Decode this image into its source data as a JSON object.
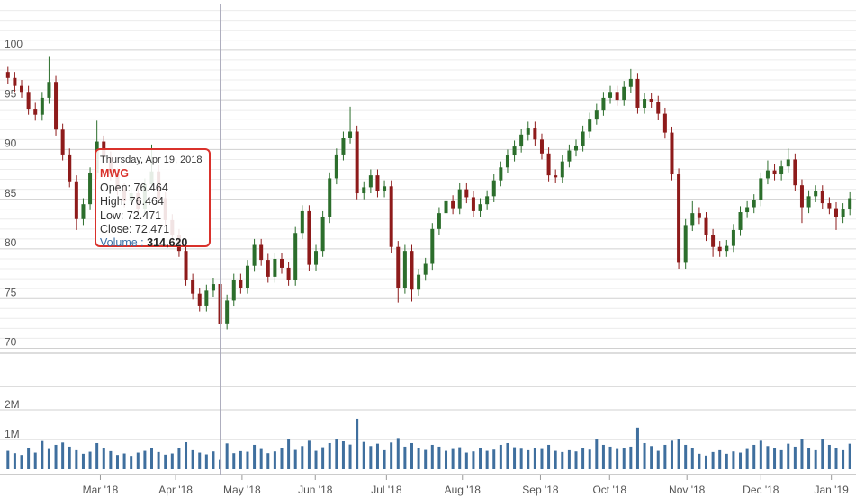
{
  "chart_data": {
    "type": "candlestick",
    "open": [
      97.8,
      97.2,
      96.4,
      95.8,
      94.1,
      93.5,
      95.2,
      96.8,
      92.0,
      89.5,
      86.8,
      83.0,
      84.5,
      87.6,
      90.8,
      89.2,
      87.5,
      86.0,
      84.8,
      85.6,
      84.0,
      86.5,
      87.8,
      85.1,
      82.9,
      81.4,
      79.8,
      76.9,
      75.5,
      74.3,
      75.8,
      76.464,
      72.5,
      74.8,
      76.9,
      76.1,
      78.3,
      80.4,
      78.9,
      77.2,
      79.0,
      78.1,
      76.9,
      81.6,
      83.8,
      78.4,
      79.8,
      83.2,
      87.1,
      89.5,
      91.2,
      91.8,
      85.6,
      86.2,
      87.4,
      85.8,
      86.3,
      80.2,
      76.1,
      79.8,
      75.9,
      77.4,
      78.5,
      82.0,
      83.6,
      84.8,
      84.1,
      86.0,
      85.2,
      83.8,
      84.5,
      85.3,
      86.9,
      88.2,
      89.4,
      90.3,
      91.5,
      92.2,
      91.0,
      89.6,
      87.4,
      87.2,
      88.8,
      89.9,
      90.4,
      91.8,
      93.1,
      94.0,
      95.2,
      95.8,
      95.0,
      96.3,
      97.1,
      94.2,
      95.1,
      94.8,
      93.6,
      91.7,
      87.5,
      78.6,
      82.4,
      83.6,
      83.1,
      81.4,
      80.2,
      79.8,
      80.3,
      81.9,
      83.7,
      84.2,
      84.9,
      87.1,
      87.9,
      87.5,
      88.3,
      89.0,
      86.4,
      84.2,
      85.3,
      85.8,
      84.6,
      84.1,
      83.2,
      84.0
    ],
    "high": [
      98.4,
      97.8,
      97.0,
      96.4,
      94.7,
      95.8,
      99.4,
      97.4,
      92.6,
      90.1,
      87.4,
      85.1,
      88.2,
      92.9,
      91.4,
      89.8,
      88.1,
      86.6,
      86.2,
      86.2,
      87.1,
      90.5,
      88.4,
      85.7,
      83.5,
      82.0,
      80.4,
      77.5,
      76.1,
      76.4,
      77.1,
      76.464,
      75.4,
      77.5,
      77.5,
      78.9,
      81.0,
      81.0,
      79.5,
      79.6,
      79.6,
      78.7,
      82.2,
      84.4,
      84.4,
      80.4,
      83.8,
      87.7,
      90.1,
      91.8,
      94.3,
      92.4,
      86.8,
      88.0,
      88.0,
      86.9,
      86.9,
      80.8,
      80.4,
      80.4,
      78.0,
      79.1,
      82.6,
      84.2,
      85.4,
      85.4,
      86.6,
      86.6,
      85.8,
      85.1,
      85.9,
      87.5,
      88.8,
      90.0,
      90.9,
      92.1,
      92.8,
      92.8,
      91.6,
      90.2,
      88.0,
      89.4,
      90.5,
      91.0,
      92.4,
      93.7,
      94.6,
      95.8,
      96.4,
      96.4,
      96.9,
      98.1,
      97.7,
      95.7,
      95.7,
      95.4,
      94.2,
      92.3,
      88.1,
      83.0,
      84.8,
      84.2,
      83.7,
      82.0,
      80.8,
      80.9,
      82.5,
      84.3,
      84.8,
      85.5,
      87.7,
      88.9,
      88.5,
      88.9,
      90.1,
      89.6,
      87.0,
      85.9,
      86.4,
      86.4,
      85.2,
      84.7,
      84.6,
      85.7
    ],
    "low": [
      96.6,
      95.8,
      95.2,
      93.5,
      92.9,
      92.9,
      94.6,
      91.4,
      88.9,
      86.2,
      81.9,
      82.4,
      83.9,
      87.0,
      88.6,
      86.9,
      85.4,
      84.2,
      84.2,
      83.4,
      83.4,
      85.9,
      84.5,
      82.3,
      80.8,
      79.2,
      76.3,
      74.9,
      73.7,
      73.7,
      75.2,
      72.471,
      71.9,
      74.2,
      75.5,
      75.5,
      77.7,
      78.3,
      76.6,
      76.6,
      77.5,
      76.3,
      76.3,
      81.0,
      77.8,
      77.8,
      79.2,
      82.6,
      86.5,
      88.9,
      90.6,
      85.0,
      85.0,
      85.6,
      85.2,
      85.2,
      79.6,
      74.6,
      75.5,
      74.7,
      75.3,
      76.8,
      77.9,
      81.4,
      83.0,
      83.5,
      83.5,
      84.6,
      83.2,
      83.2,
      83.9,
      84.7,
      86.3,
      87.6,
      88.8,
      89.7,
      90.9,
      90.4,
      89.0,
      86.8,
      86.6,
      86.6,
      88.2,
      89.3,
      89.8,
      91.2,
      92.5,
      93.4,
      94.6,
      94.4,
      94.4,
      95.7,
      93.6,
      93.6,
      94.2,
      93.0,
      91.1,
      86.9,
      78.0,
      78.0,
      81.8,
      82.5,
      80.8,
      79.2,
      79.2,
      79.2,
      79.7,
      81.3,
      83.1,
      83.6,
      84.3,
      86.5,
      86.9,
      86.9,
      87.7,
      85.8,
      82.6,
      83.6,
      84.7,
      84.0,
      83.5,
      81.9,
      82.6,
      83.4
    ],
    "close": [
      97.2,
      96.4,
      95.8,
      94.1,
      93.5,
      95.2,
      96.8,
      92.0,
      89.5,
      86.8,
      83.0,
      84.5,
      87.6,
      90.8,
      89.2,
      87.5,
      86.0,
      84.8,
      85.6,
      84.0,
      86.5,
      87.8,
      85.1,
      82.9,
      81.4,
      79.8,
      76.9,
      75.5,
      74.3,
      75.8,
      76.46,
      72.471,
      74.8,
      76.9,
      76.1,
      78.3,
      80.4,
      78.9,
      77.2,
      79.0,
      78.1,
      76.9,
      81.6,
      83.8,
      78.4,
      79.8,
      83.2,
      87.1,
      89.5,
      91.2,
      91.8,
      85.6,
      86.2,
      87.4,
      85.8,
      86.3,
      80.2,
      76.1,
      79.8,
      75.9,
      77.4,
      78.5,
      82.0,
      83.6,
      84.8,
      84.1,
      86.0,
      85.2,
      83.8,
      84.5,
      85.3,
      86.9,
      88.2,
      89.4,
      90.3,
      91.5,
      92.2,
      91.0,
      89.6,
      87.4,
      87.2,
      88.8,
      89.9,
      90.4,
      91.8,
      93.1,
      94.0,
      95.2,
      95.8,
      95.0,
      96.3,
      97.1,
      94.2,
      95.1,
      94.8,
      93.6,
      91.7,
      87.5,
      78.6,
      82.4,
      83.6,
      83.1,
      81.4,
      80.2,
      79.8,
      80.3,
      81.9,
      83.7,
      84.2,
      84.9,
      87.1,
      87.9,
      87.5,
      88.3,
      89.0,
      86.4,
      84.2,
      85.3,
      85.8,
      84.6,
      84.1,
      83.2,
      84.0,
      85.1
    ],
    "up_color": "#2c6e2c",
    "down_color": "#8e1b1b",
    "ylim": [
      69.5,
      104.6
    ],
    "yticks": [
      70,
      75,
      80,
      85,
      90,
      95,
      100
    ],
    "minor_yticks": [
      71,
      72,
      73,
      74,
      76,
      77,
      78,
      79,
      81,
      82,
      83,
      84,
      86,
      87,
      88,
      89,
      91,
      92,
      93,
      94,
      96,
      97,
      98,
      99,
      101,
      102,
      103,
      104
    ],
    "grid": true,
    "xticks": [
      {
        "value": 13.5,
        "label": "Mar '18"
      },
      {
        "value": 24.5,
        "label": "Apr '18"
      },
      {
        "value": 34.2,
        "label": "May '18"
      },
      {
        "value": 44.9,
        "label": "Jun '18"
      },
      {
        "value": 55.3,
        "label": "Jul '18"
      },
      {
        "value": 66.4,
        "label": "Aug '18"
      },
      {
        "value": 77.8,
        "label": "Sep '18"
      },
      {
        "value": 87.9,
        "label": "Oct '18"
      },
      {
        "value": 99.2,
        "label": "Nov '18"
      },
      {
        "value": 110,
        "label": "Dec '18"
      },
      {
        "value": 120.3,
        "label": "Jan '19"
      }
    ],
    "volume": {
      "color": "#3f6f9e",
      "values": [
        620000,
        540000,
        480000,
        710000,
        560000,
        950000,
        680000,
        820000,
        900000,
        760000,
        640000,
        520000,
        590000,
        880000,
        700000,
        610000,
        480000,
        530000,
        450000,
        560000,
        620000,
        700000,
        580000,
        490000,
        530000,
        720000,
        910000,
        640000,
        560000,
        500000,
        600000,
        314620,
        870000,
        540000,
        610000,
        590000,
        820000,
        680000,
        540000,
        600000,
        720000,
        1000000,
        650000,
        780000,
        960000,
        620000,
        740000,
        880000,
        1000000,
        940000,
        830000,
        1700000,
        920000,
        780000,
        860000,
        640000,
        900000,
        1050000,
        760000,
        880000,
        700000,
        650000,
        820000,
        760000,
        620000,
        680000,
        740000,
        560000,
        600000,
        710000,
        620000,
        660000,
        820000,
        880000,
        740000,
        690000,
        640000,
        720000,
        680000,
        820000,
        620000,
        580000,
        640000,
        600000,
        700000,
        660000,
        1000000,
        820000,
        760000,
        680000,
        720000,
        760000,
        1400000,
        880000,
        780000,
        620000,
        820000,
        960000,
        1000000,
        820000,
        700000,
        520000,
        460000,
        580000,
        640000,
        520000,
        600000,
        560000,
        680000,
        820000,
        960000,
        780000,
        700000,
        640000,
        860000,
        760000,
        1000000,
        700000,
        640000,
        1000000,
        820000,
        700000,
        640000,
        860000
      ],
      "value_labels": [
        null,
        null,
        null,
        null,
        null,
        null,
        null,
        null,
        null,
        null,
        null,
        null,
        null,
        null,
        null,
        null,
        null,
        null,
        null,
        null,
        null,
        null,
        null,
        null,
        null,
        null,
        null,
        null,
        null,
        null,
        null,
        "314,620",
        null,
        null,
        null,
        null,
        null,
        null,
        null,
        null,
        null,
        null,
        null,
        null,
        null,
        null,
        null,
        null,
        null,
        null,
        null,
        null,
        null,
        null,
        null,
        null,
        null,
        null,
        null,
        null,
        null,
        null,
        null,
        null,
        null,
        null,
        null,
        null,
        null,
        null,
        null,
        null,
        null,
        null,
        null,
        null,
        null,
        null,
        null,
        null,
        null,
        null,
        null,
        null,
        null,
        null,
        null,
        null,
        null,
        null,
        null,
        null,
        null,
        null,
        null,
        null,
        null,
        null,
        null,
        null,
        null,
        null,
        null,
        null,
        null,
        null,
        null,
        null,
        null,
        null,
        null,
        null,
        null,
        null,
        null,
        null,
        null,
        null,
        null,
        null,
        null,
        null,
        null,
        null
      ],
      "ylim": [
        0,
        2790000
      ],
      "yticks": [
        {
          "value": 1000000,
          "label": "1M"
        },
        {
          "value": 2000000,
          "label": "2M"
        }
      ]
    },
    "tooltip": {
      "date": "Thursday, Apr 19, 2018",
      "symbol": "MWG",
      "open_label": "Open:",
      "high_label": "High:",
      "low_label": "Low:",
      "close_label": "Close:",
      "volume_label": "Volume :"
    }
  }
}
